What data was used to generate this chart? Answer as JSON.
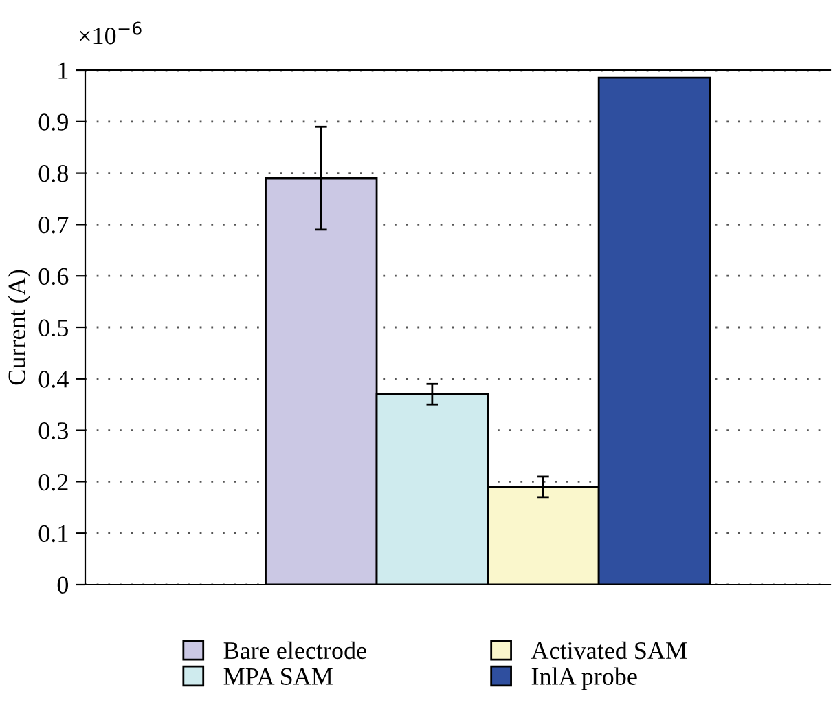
{
  "chart_data": {
    "type": "bar",
    "ylabel": "Current (A)",
    "annotations": [
      "×10$^{−6}$"
    ],
    "categories": [
      null
    ],
    "series": [
      {
        "name": "Bare electrode",
        "color": "#cbc8e4",
        "values": [
          0.79
        ],
        "errors": [
          0.1
        ]
      },
      {
        "name": "MPA SAM",
        "color": "#cfebee",
        "values": [
          0.37
        ],
        "errors": [
          0.02
        ]
      },
      {
        "name": "Activated SAM",
        "color": "#faf7cc",
        "values": [
          0.19
        ],
        "errors": [
          0.02
        ]
      },
      {
        "name": "InlA probe",
        "color": "#2f4f9f",
        "values": [
          0.985
        ],
        "errors": [
          null
        ]
      }
    ],
    "ylim": [
      0,
      1
    ],
    "yticks": [
      0,
      0.1,
      0.2,
      0.3,
      0.4,
      0.5,
      0.6,
      0.7,
      0.8,
      0.9,
      1
    ],
    "grid": "y",
    "legend": "bottom",
    "tick_labels": "y"
  }
}
